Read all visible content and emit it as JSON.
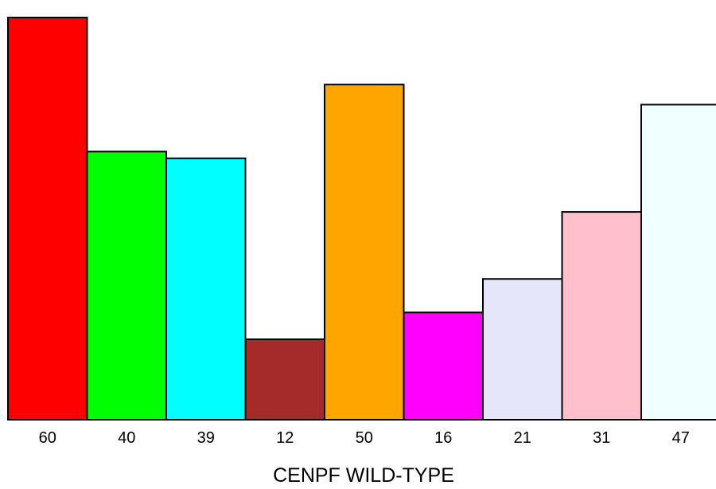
{
  "chart_data": {
    "type": "bar",
    "title": "",
    "xlabel": "CENPF WILD-TYPE",
    "ylabel": "",
    "categories": [
      "60",
      "40",
      "39",
      "12",
      "50",
      "16",
      "21",
      "31",
      "47"
    ],
    "values": [
      60,
      40,
      39,
      12,
      50,
      16,
      21,
      31,
      47
    ],
    "colors": [
      "#ff0000",
      "#00ff00",
      "#00ffff",
      "#a52a2a",
      "#ffa500",
      "#ff00ff",
      "#e6e6fa",
      "#ffc0cb",
      "#f0ffff"
    ],
    "ylim": [
      0,
      60
    ],
    "grid": false,
    "legend": "none"
  }
}
